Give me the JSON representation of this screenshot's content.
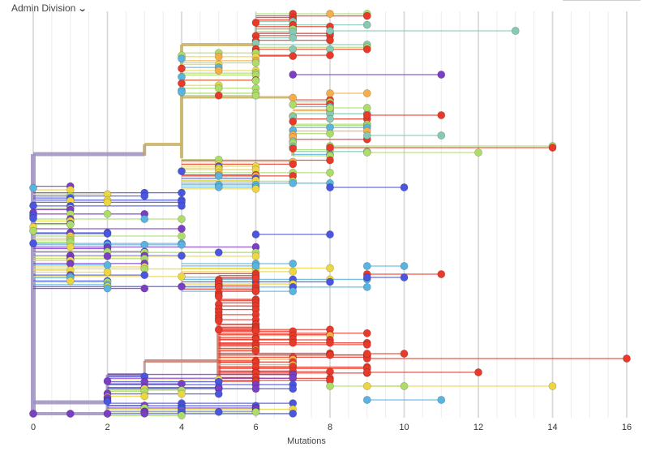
{
  "legend_selector": {
    "label": "Admin Division",
    "icon": "chevron-down-icon"
  },
  "chart_data": {
    "type": "scatter",
    "title": "",
    "xlabel": "Mutations",
    "ylabel": "",
    "xlim": [
      0,
      16
    ],
    "x_ticks": [
      "0",
      "2",
      "4",
      "6",
      "8",
      "10",
      "12",
      "14",
      "16"
    ],
    "grid": "vertical minor every 0.5, major every 2",
    "colors": {
      "purple": "#7b3fc4",
      "blue": "#4a55e0",
      "lightblue": "#5ab4e0",
      "teal": "#86c9b4",
      "lime": "#aedc6a",
      "yellow": "#ecd644",
      "orange": "#f5ae4a",
      "red": "#e83a2a",
      "trunk": "#9c8fbf"
    },
    "tips": [
      {
        "x": 13,
        "color": "teal"
      },
      {
        "x": 11,
        "color": "purple"
      },
      {
        "x": 14,
        "color": "lime"
      },
      {
        "x": 14,
        "color": "red"
      },
      {
        "x": 12,
        "color": "lime"
      },
      {
        "x": 11,
        "color": "red"
      },
      {
        "x": 11,
        "color": "teal"
      },
      {
        "x": 10,
        "color": "blue"
      },
      {
        "x": 8,
        "color": "blue"
      },
      {
        "x": 10,
        "color": "lightblue"
      },
      {
        "x": 11,
        "color": "red"
      },
      {
        "x": 10,
        "color": "blue"
      },
      {
        "x": 16,
        "color": "red"
      },
      {
        "x": 12,
        "color": "red"
      },
      {
        "x": 14,
        "color": "yellow"
      },
      {
        "x": 11,
        "color": "lightblue"
      },
      {
        "x": 10,
        "color": "lime"
      },
      {
        "x": 10,
        "color": "red"
      },
      {
        "x": 9,
        "color": "orange"
      },
      {
        "x": 9,
        "color": "lime"
      }
    ]
  }
}
